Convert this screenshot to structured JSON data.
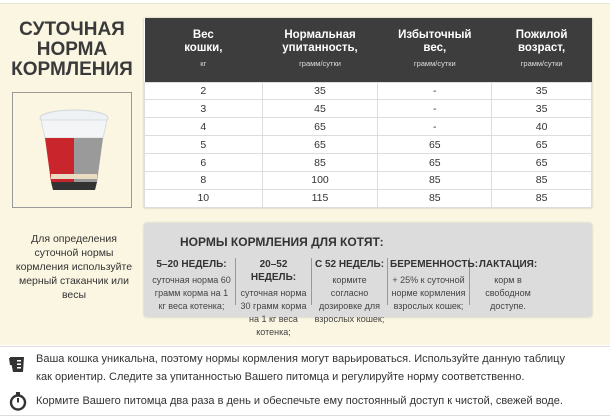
{
  "title": [
    "СУТОЧНАЯ",
    "НОРМА",
    "КОРМЛЕНИЯ"
  ],
  "table": {
    "headers": [
      {
        "label": [
          "Вес",
          "кошки,"
        ],
        "unit": "кг"
      },
      {
        "label": [
          "Нормальная",
          "упитанность,"
        ],
        "unit": "грамм/сутки"
      },
      {
        "label": [
          "Избыточный",
          "вес,"
        ],
        "unit": "грамм/сутки"
      },
      {
        "label": [
          "Пожилой",
          "возраст,"
        ],
        "unit": "грамм/сутки"
      }
    ],
    "rows": [
      [
        "2",
        "35",
        "-",
        "35"
      ],
      [
        "3",
        "45",
        "-",
        "35"
      ],
      [
        "4",
        "65",
        "-",
        "40"
      ],
      [
        "5",
        "65",
        "65",
        "65"
      ],
      [
        "6",
        "85",
        "65",
        "65"
      ],
      [
        "8",
        "100",
        "85",
        "85"
      ],
      [
        "10",
        "115",
        "85",
        "85"
      ]
    ]
  },
  "left_text": "Для определения суточной нормы кормления используйте мерный стаканчик или весы",
  "kittens": {
    "title": "НОРМЫ КОРМЛЕНИЯ ДЛЯ КОТЯТ:",
    "columns": [
      {
        "heading": "5–20 НЕДЕЛЬ:",
        "text": "суточная норма 60 грамм корма на 1 кг веса котенка;"
      },
      {
        "heading": "20–52 НЕДЕЛЬ:",
        "text": "суточная норма 30 грамм корма на 1 кг веса котенка;"
      },
      {
        "heading": "С 52 НЕДЕЛЬ:",
        "text": "кормите согласно дозировке для взрослых кошек;"
      },
      {
        "heading": "БЕРЕМЕННОСТЬ:",
        "text": "+ 25% к суточной норме кормления взрослых кошек;"
      },
      {
        "heading": "ЛАКТАЦИЯ:",
        "text": "корм в свободном доступе."
      }
    ]
  },
  "notes": [
    {
      "icon": "measuring-cup-icon",
      "text": "Ваша кошка уникальна, поэтому нормы кормления могут варьироваться. Используйте данную таблицу как ориентир. Следите за упитанностью Вашего питомца и регулируйте норму соответственно."
    },
    {
      "icon": "stopwatch-icon",
      "text": "Кормите Вашего питомца два раза в день и обеспечьте ему постоянный доступ к чистой, свежей воде."
    }
  ],
  "colors": {
    "background": "#fbf6e1",
    "header": "#3d3d3d",
    "kitten_box": "#dcdcdc",
    "cup_red": "#c8262c"
  }
}
